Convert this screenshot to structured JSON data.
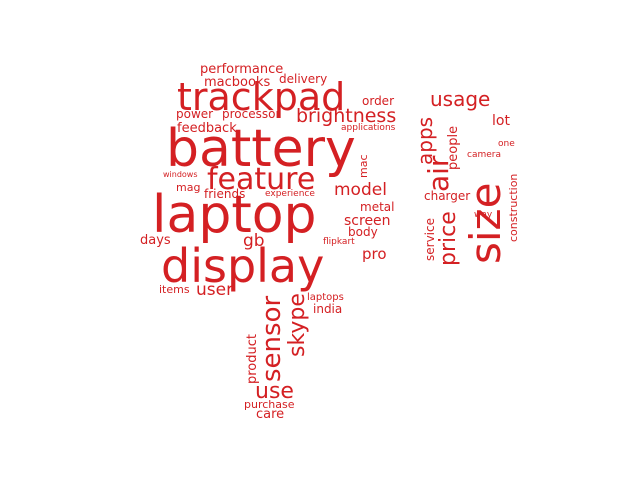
{
  "word_color": "#d42023",
  "words": [
    {
      "text": "battery"
    },
    {
      "text": "laptop"
    },
    {
      "text": "display"
    },
    {
      "text": "trackpad"
    },
    {
      "text": "feature"
    },
    {
      "text": "size"
    },
    {
      "text": "air"
    },
    {
      "text": "usage"
    },
    {
      "text": "apps"
    },
    {
      "text": "price"
    },
    {
      "text": "brightness"
    },
    {
      "text": "model"
    },
    {
      "text": "sensor"
    },
    {
      "text": "skype"
    },
    {
      "text": "use"
    },
    {
      "text": "user"
    },
    {
      "text": "gb"
    },
    {
      "text": "pro"
    },
    {
      "text": "screen"
    },
    {
      "text": "performance"
    },
    {
      "text": "macbooks"
    },
    {
      "text": "delivery"
    },
    {
      "text": "power"
    },
    {
      "text": "processor"
    },
    {
      "text": "order"
    },
    {
      "text": "feedback"
    },
    {
      "text": "applications"
    },
    {
      "text": "lot"
    },
    {
      "text": "people"
    },
    {
      "text": "one"
    },
    {
      "text": "camera"
    },
    {
      "text": "mac"
    },
    {
      "text": "windows"
    },
    {
      "text": "mag"
    },
    {
      "text": "friends"
    },
    {
      "text": "experience"
    },
    {
      "text": "charger"
    },
    {
      "text": "metal"
    },
    {
      "text": "service"
    },
    {
      "text": "construction"
    },
    {
      "text": "way"
    },
    {
      "text": "days"
    },
    {
      "text": "flipkart"
    },
    {
      "text": "body"
    },
    {
      "text": "items"
    },
    {
      "text": "laptops"
    },
    {
      "text": "india"
    },
    {
      "text": "product"
    },
    {
      "text": "purchase"
    },
    {
      "text": "care"
    }
  ]
}
